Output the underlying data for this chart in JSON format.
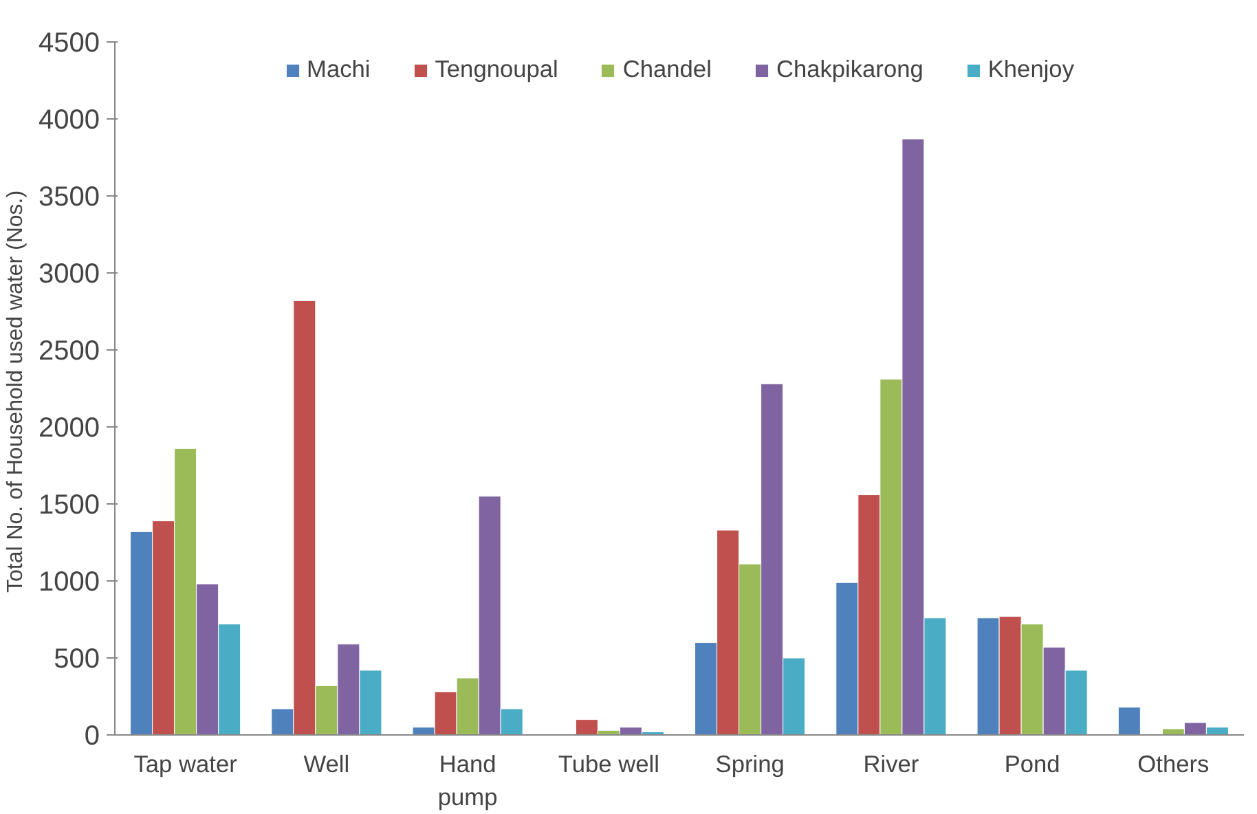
{
  "chart_data": {
    "type": "bar",
    "ylabel": "Total No. of Household used water  (Nos.)",
    "categories": [
      "Tap water",
      "Well",
      "Hand\npump",
      "Tube well",
      "Spring",
      "River",
      "Pond",
      "Others"
    ],
    "series": [
      {
        "name": "Machi",
        "color": "#4f81bd",
        "values": [
          1320,
          170,
          50,
          null,
          600,
          990,
          760,
          180
        ]
      },
      {
        "name": "Tengnoupal",
        "color": "#c0504d",
        "values": [
          1390,
          2820,
          280,
          100,
          1330,
          1560,
          770,
          null
        ]
      },
      {
        "name": "Chandel",
        "color": "#9bbb59",
        "values": [
          1860,
          320,
          370,
          30,
          1110,
          2310,
          720,
          40
        ]
      },
      {
        "name": "Chakpikarong",
        "color": "#8064a2",
        "values": [
          980,
          590,
          1550,
          50,
          2280,
          3870,
          570,
          80
        ]
      },
      {
        "name": "Khenjoy",
        "color": "#4bacc6",
        "values": [
          720,
          420,
          170,
          20,
          500,
          760,
          420,
          50
        ]
      }
    ],
    "ylim": [
      0,
      4500
    ],
    "yticks": [
      0,
      500,
      1000,
      1500,
      2000,
      2500,
      3000,
      3500,
      4000,
      4500
    ],
    "legend": "top",
    "grid": false
  }
}
